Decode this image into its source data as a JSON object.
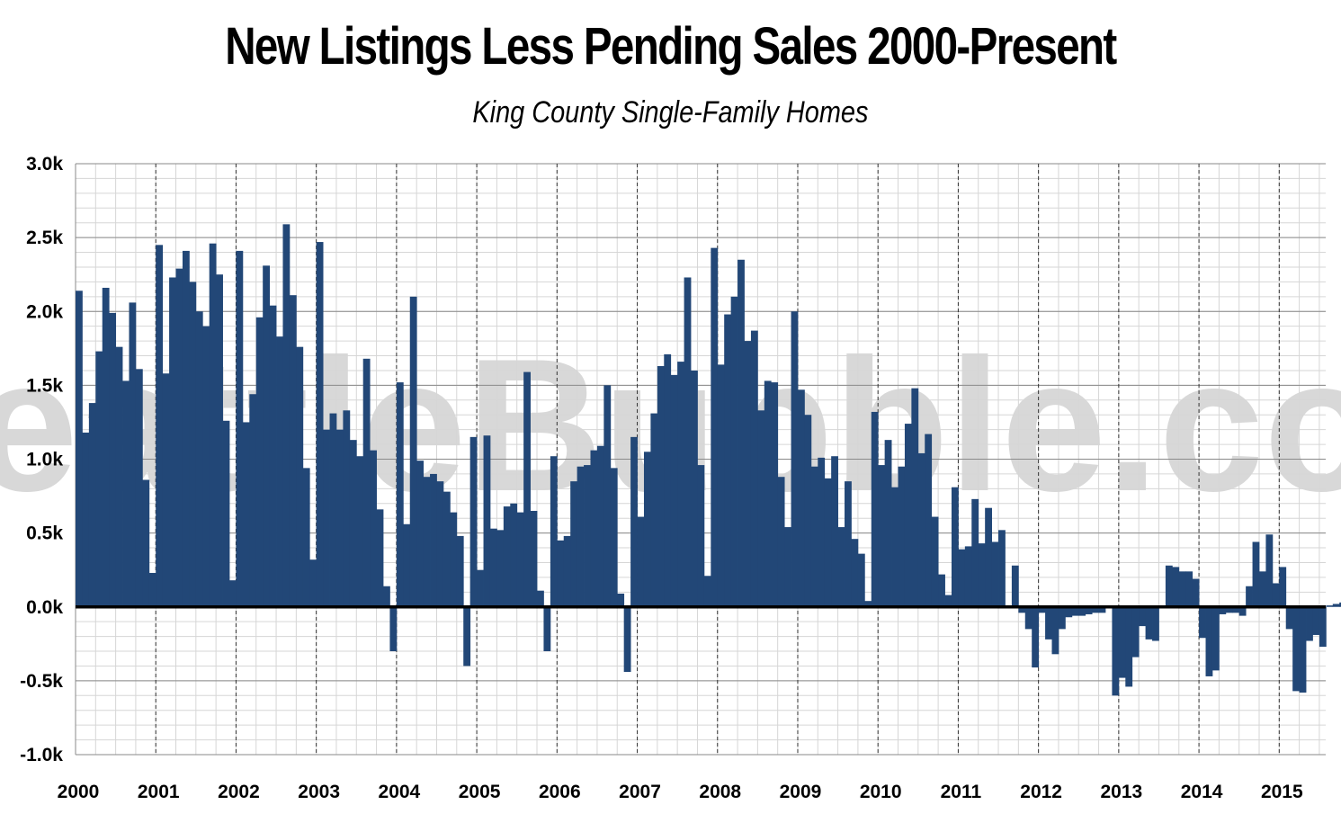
{
  "chart_data": {
    "type": "bar",
    "title": "New Listings Less Pending Sales 2000-Present",
    "subtitle": "King County Single-Family Homes",
    "watermark": "SeattleBubble.com",
    "xlabel": "",
    "ylabel": "",
    "ylim": [
      -1000,
      3000
    ],
    "y_ticks": [
      "-1.0k",
      "-0.5k",
      "0.0k",
      "0.5k",
      "1.0k",
      "1.5k",
      "2.0k",
      "2.5k",
      "3.0k"
    ],
    "x_ticks": [
      "2000",
      "2001",
      "2002",
      "2003",
      "2004",
      "2005",
      "2006",
      "2007",
      "2008",
      "2009",
      "2010",
      "2011",
      "2012",
      "2013",
      "2014",
      "2015"
    ],
    "grid": true,
    "bar_color": "#224777",
    "zero_line_color": "#000000",
    "start_month": "2000-01",
    "series": [
      {
        "values": [
          2140,
          1180,
          1380,
          1730,
          2160,
          1990,
          1760,
          1530,
          2060,
          1610,
          860,
          230,
          2450,
          1580,
          2230,
          2290,
          2410,
          2200,
          2000,
          1900,
          2460,
          2250,
          1260,
          180,
          2410,
          1250,
          1440,
          1960,
          2310,
          2040,
          1830,
          2590,
          2110,
          1760,
          940,
          320,
          2470,
          1200,
          1310,
          1200,
          1330,
          1130,
          1020,
          1680,
          1060,
          660,
          140,
          -300,
          1520,
          560,
          2100,
          990,
          880,
          900,
          850,
          780,
          640,
          480,
          -400,
          1150,
          250,
          1160,
          530,
          520,
          680,
          700,
          640,
          1590,
          650,
          110,
          -300,
          1020,
          450,
          480,
          850,
          950,
          960,
          1060,
          1090,
          1500,
          940,
          90,
          -440,
          1150,
          610,
          1050,
          1310,
          1630,
          1710,
          1570,
          1660,
          2230,
          1600,
          960,
          210,
          2430,
          1640,
          1980,
          2100,
          2350,
          1800,
          1870,
          1330,
          1530,
          1520,
          880,
          540,
          2000,
          1470,
          1300,
          950,
          1010,
          870,
          1020,
          540,
          850,
          460,
          360,
          40,
          1320,
          960,
          1130,
          810,
          950,
          1240,
          1480,
          1040,
          1170,
          610,
          220,
          80,
          810,
          390,
          410,
          730,
          430,
          670,
          440,
          520,
          0,
          280,
          -40,
          -150,
          -410,
          -40,
          -220,
          -320,
          -150,
          -70,
          -60,
          -60,
          -50,
          -40,
          -40,
          0,
          -600,
          -480,
          -540,
          -340,
          -130,
          -220,
          -230,
          0,
          280,
          270,
          240,
          240,
          190,
          -210,
          -470,
          -430,
          -50,
          -40,
          -40,
          -60,
          140,
          440,
          240,
          490,
          160,
          270,
          -150,
          -570,
          -580,
          -230,
          -190,
          -270,
          10,
          20,
          30
        ]
      }
    ]
  }
}
